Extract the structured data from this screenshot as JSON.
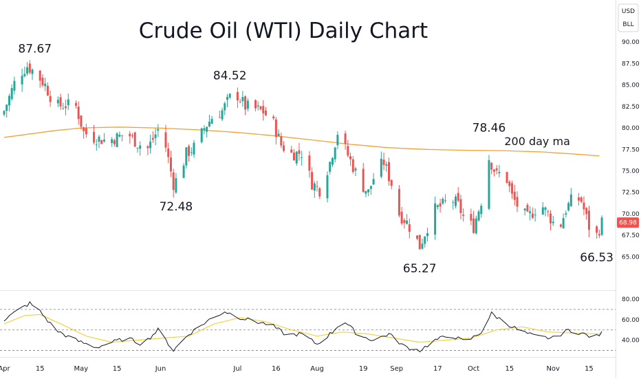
{
  "chart_data": {
    "type": "candlestick",
    "title": "Crude Oil (WTI) Daily Chart",
    "currency": "USD",
    "unit": "BLL",
    "price_scale": {
      "ylim": [
        63.5,
        90.5
      ],
      "ticks": [
        "90.00",
        "87.50",
        "85.00",
        "82.50",
        "80.00",
        "77.50",
        "75.00",
        "72.50",
        "70.00",
        "67.50",
        "65.00"
      ]
    },
    "last_price": "68.98",
    "x_tick_labels": [
      {
        "label": "Apr",
        "day": 0
      },
      {
        "label": "15",
        "day": 14
      },
      {
        "label": "May",
        "day": 30
      },
      {
        "label": "15",
        "day": 44
      },
      {
        "label": "Jun",
        "day": 61
      },
      {
        "label": "Jul",
        "day": 91
      },
      {
        "label": "16",
        "day": 106
      },
      {
        "label": "Aug",
        "day": 122
      },
      {
        "label": "19",
        "day": 140
      },
      {
        "label": "Sep",
        "day": 153
      },
      {
        "label": "17",
        "day": 169
      },
      {
        "label": "Oct",
        "day": 183
      },
      {
        "label": "15",
        "day": 197
      },
      {
        "label": "Nov",
        "day": 214
      },
      {
        "label": "15",
        "day": 228
      }
    ],
    "annotations": [
      {
        "text": "87.67",
        "day": 12,
        "price": 87.67,
        "pos": "above"
      },
      {
        "text": "72.48",
        "day": 67,
        "price": 72.48,
        "pos": "below"
      },
      {
        "text": "84.52",
        "day": 88,
        "price": 84.52,
        "pos": "above"
      },
      {
        "text": "65.27",
        "day": 162,
        "price": 65.27,
        "pos": "below"
      },
      {
        "text": "78.46",
        "day": 189,
        "price": 78.46,
        "pos": "above"
      },
      {
        "text": "66.53",
        "day": 231,
        "price": 66.53,
        "pos": "below"
      }
    ],
    "ma_label": "200 day ma",
    "ma_200": [
      {
        "day": 0,
        "price": 78.9
      },
      {
        "day": 10,
        "price": 79.3
      },
      {
        "day": 20,
        "price": 79.7
      },
      {
        "day": 30,
        "price": 80.0
      },
      {
        "day": 45,
        "price": 80.1
      },
      {
        "day": 60,
        "price": 80.0
      },
      {
        "day": 75,
        "price": 79.8
      },
      {
        "day": 90,
        "price": 79.5
      },
      {
        "day": 105,
        "price": 79.1
      },
      {
        "day": 120,
        "price": 78.6
      },
      {
        "day": 135,
        "price": 78.1
      },
      {
        "day": 150,
        "price": 77.7
      },
      {
        "day": 165,
        "price": 77.5
      },
      {
        "day": 180,
        "price": 77.4
      },
      {
        "day": 195,
        "price": 77.35
      },
      {
        "day": 210,
        "price": 77.2
      },
      {
        "day": 225,
        "price": 76.9
      },
      {
        "day": 232,
        "price": 76.75
      }
    ],
    "close_path": [
      {
        "day": 0,
        "price": 82.0
      },
      {
        "day": 5,
        "price": 86.0
      },
      {
        "day": 9,
        "price": 87.2
      },
      {
        "day": 12,
        "price": 86.5
      },
      {
        "day": 16,
        "price": 85.0
      },
      {
        "day": 20,
        "price": 82.5
      },
      {
        "day": 24,
        "price": 82.7
      },
      {
        "day": 28,
        "price": 82.5
      },
      {
        "day": 31,
        "price": 79.5
      },
      {
        "day": 35,
        "price": 78.9
      },
      {
        "day": 40,
        "price": 78.5
      },
      {
        "day": 44,
        "price": 78.9
      },
      {
        "day": 48,
        "price": 79.4
      },
      {
        "day": 52,
        "price": 78.2
      },
      {
        "day": 56,
        "price": 77.6
      },
      {
        "day": 60,
        "price": 79.8
      },
      {
        "day": 63,
        "price": 77.8
      },
      {
        "day": 66,
        "price": 73.5
      },
      {
        "day": 68,
        "price": 74.3
      },
      {
        "day": 71,
        "price": 77.0
      },
      {
        "day": 75,
        "price": 78.0
      },
      {
        "day": 78,
        "price": 80.0
      },
      {
        "day": 81,
        "price": 81.2
      },
      {
        "day": 85,
        "price": 82.0
      },
      {
        "day": 88,
        "price": 83.5
      },
      {
        "day": 91,
        "price": 83.8
      },
      {
        "day": 94,
        "price": 82.5
      },
      {
        "day": 97,
        "price": 82.3
      },
      {
        "day": 101,
        "price": 81.9
      },
      {
        "day": 105,
        "price": 80.5
      },
      {
        "day": 108,
        "price": 78.0
      },
      {
        "day": 112,
        "price": 77.0
      },
      {
        "day": 116,
        "price": 77.1
      },
      {
        "day": 120,
        "price": 73.6
      },
      {
        "day": 123,
        "price": 72.8
      },
      {
        "day": 127,
        "price": 76.0
      },
      {
        "day": 130,
        "price": 79.5
      },
      {
        "day": 133,
        "price": 77.5
      },
      {
        "day": 136,
        "price": 75.5
      },
      {
        "day": 139,
        "price": 73.5
      },
      {
        "day": 142,
        "price": 72.5
      },
      {
        "day": 145,
        "price": 75.0
      },
      {
        "day": 148,
        "price": 76.0
      },
      {
        "day": 151,
        "price": 73.5
      },
      {
        "day": 154,
        "price": 70.0
      },
      {
        "day": 157,
        "price": 69.0
      },
      {
        "day": 160,
        "price": 67.5
      },
      {
        "day": 162,
        "price": 66.2
      },
      {
        "day": 165,
        "price": 68.5
      },
      {
        "day": 168,
        "price": 70.5
      },
      {
        "day": 171,
        "price": 71.0
      },
      {
        "day": 174,
        "price": 71.8
      },
      {
        "day": 177,
        "price": 71.0
      },
      {
        "day": 180,
        "price": 69.0
      },
      {
        "day": 183,
        "price": 68.5
      },
      {
        "day": 186,
        "price": 71.5
      },
      {
        "day": 189,
        "price": 76.5
      },
      {
        "day": 192,
        "price": 74.5
      },
      {
        "day": 195,
        "price": 75.0
      },
      {
        "day": 198,
        "price": 72.0
      },
      {
        "day": 201,
        "price": 70.5
      },
      {
        "day": 204,
        "price": 69.5
      },
      {
        "day": 207,
        "price": 70.5
      },
      {
        "day": 210,
        "price": 70.8
      },
      {
        "day": 213,
        "price": 69.5
      },
      {
        "day": 216,
        "price": 68.0
      },
      {
        "day": 219,
        "price": 70.5
      },
      {
        "day": 222,
        "price": 72.0
      },
      {
        "day": 225,
        "price": 71.5
      },
      {
        "day": 228,
        "price": 68.5
      },
      {
        "day": 231,
        "price": 67.5
      },
      {
        "day": 233,
        "price": 68.98
      }
    ],
    "rsi": {
      "ylim": [
        25,
        82
      ],
      "ticks": [
        "80.00",
        "60.00",
        "40.00"
      ],
      "dashed_levels": [
        70,
        50,
        30
      ],
      "rsi_path": [
        {
          "day": 0,
          "price": 60
        },
        {
          "day": 6,
          "price": 70
        },
        {
          "day": 10,
          "price": 76
        },
        {
          "day": 14,
          "price": 68
        },
        {
          "day": 20,
          "price": 50
        },
        {
          "day": 26,
          "price": 42
        },
        {
          "day": 30,
          "price": 38
        },
        {
          "day": 36,
          "price": 33
        },
        {
          "day": 42,
          "price": 38
        },
        {
          "day": 48,
          "price": 42
        },
        {
          "day": 54,
          "price": 36
        },
        {
          "day": 60,
          "price": 50
        },
        {
          "day": 66,
          "price": 30
        },
        {
          "day": 72,
          "price": 46
        },
        {
          "day": 80,
          "price": 60
        },
        {
          "day": 86,
          "price": 68
        },
        {
          "day": 92,
          "price": 62
        },
        {
          "day": 98,
          "price": 58
        },
        {
          "day": 104,
          "price": 55
        },
        {
          "day": 110,
          "price": 45
        },
        {
          "day": 116,
          "price": 46
        },
        {
          "day": 122,
          "price": 36
        },
        {
          "day": 128,
          "price": 48
        },
        {
          "day": 132,
          "price": 60
        },
        {
          "day": 138,
          "price": 45
        },
        {
          "day": 144,
          "price": 40
        },
        {
          "day": 150,
          "price": 46
        },
        {
          "day": 156,
          "price": 34
        },
        {
          "day": 162,
          "price": 30
        },
        {
          "day": 168,
          "price": 40
        },
        {
          "day": 174,
          "price": 45
        },
        {
          "day": 180,
          "price": 38
        },
        {
          "day": 186,
          "price": 48
        },
        {
          "day": 190,
          "price": 66
        },
        {
          "day": 196,
          "price": 56
        },
        {
          "day": 202,
          "price": 48
        },
        {
          "day": 208,
          "price": 43
        },
        {
          "day": 214,
          "price": 42
        },
        {
          "day": 220,
          "price": 50
        },
        {
          "day": 226,
          "price": 46
        },
        {
          "day": 230,
          "price": 42
        },
        {
          "day": 233,
          "price": 47
        }
      ],
      "signal_path": [
        {
          "day": 0,
          "price": 56
        },
        {
          "day": 8,
          "price": 64
        },
        {
          "day": 14,
          "price": 65
        },
        {
          "day": 22,
          "price": 56
        },
        {
          "day": 32,
          "price": 44
        },
        {
          "day": 42,
          "price": 38
        },
        {
          "day": 52,
          "price": 40
        },
        {
          "day": 62,
          "price": 42
        },
        {
          "day": 72,
          "price": 44
        },
        {
          "day": 82,
          "price": 56
        },
        {
          "day": 92,
          "price": 62
        },
        {
          "day": 102,
          "price": 58
        },
        {
          "day": 112,
          "price": 50
        },
        {
          "day": 122,
          "price": 44
        },
        {
          "day": 132,
          "price": 48
        },
        {
          "day": 142,
          "price": 46
        },
        {
          "day": 152,
          "price": 42
        },
        {
          "day": 162,
          "price": 38
        },
        {
          "day": 172,
          "price": 40
        },
        {
          "day": 182,
          "price": 42
        },
        {
          "day": 192,
          "price": 50
        },
        {
          "day": 202,
          "price": 53
        },
        {
          "day": 212,
          "price": 48
        },
        {
          "day": 222,
          "price": 47
        },
        {
          "day": 233,
          "price": 46
        }
      ]
    },
    "colors": {
      "up": "#26a69a",
      "down": "#ef5350",
      "ma": "#f5a033",
      "ma_label": "#f5a033",
      "rsi_line": "#131722",
      "rsi_signal": "#f2d240",
      "last_price_bg": "#ef5350"
    }
  }
}
